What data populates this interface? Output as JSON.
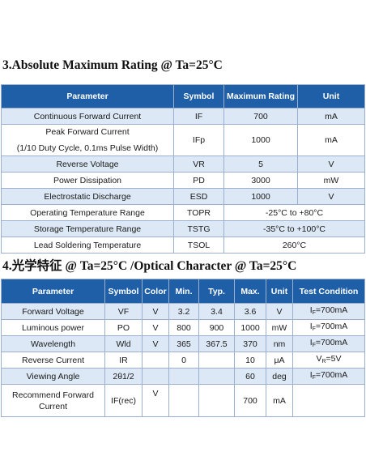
{
  "section1": {
    "title": "3.Absolute Maximum Rating @ Ta=25°C",
    "headers": [
      "Parameter",
      "Symbol",
      "Maximum Rating",
      "Unit"
    ],
    "rows": [
      {
        "param": "Continuous Forward Current",
        "symbol": "IF",
        "rating": "700",
        "unit": "mA"
      },
      {
        "param": "Peak Forward Current",
        "param2": "(1/10 Duty Cycle, 0.1ms Pulse Width)",
        "symbol": "IFp",
        "rating": "1000",
        "unit": "mA"
      },
      {
        "param": "Reverse Voltage",
        "symbol": "VR",
        "rating": "5",
        "unit": "V"
      },
      {
        "param": "Power Dissipation",
        "symbol": "PD",
        "rating": "3000",
        "unit": "mW"
      },
      {
        "param": "Electrostatic Discharge",
        "symbol": "ESD",
        "rating": "1000",
        "unit": "V"
      },
      {
        "param": "Operating Temperature Range",
        "symbol": "TOPR",
        "rating": "-25°C to +80°C"
      },
      {
        "param": "Storage Temperature Range",
        "symbol": "TSTG",
        "rating": "-35°C to +100°C"
      },
      {
        "param": "Lead Soldering Temperature",
        "symbol": "TSOL",
        "rating": "260°C"
      }
    ]
  },
  "section2": {
    "title": "4.光学特征 @ Ta=25°C /Optical Character @ Ta=25°C",
    "headers": [
      "Parameter",
      "Symbol",
      "Color",
      "Min.",
      "Typ.",
      "Max.",
      "Unit",
      "Test Condition"
    ],
    "rows": [
      {
        "param": "Forward Voltage",
        "symbol": "VF",
        "color": "V",
        "min": "3.2",
        "typ": "3.4",
        "max": "3.6",
        "unit": "V",
        "cond": "I",
        "cond_sub": "F",
        "cond_rest": "=700mA"
      },
      {
        "param": "Luminous power",
        "symbol": "PO",
        "color": "V",
        "min": "800",
        "typ": "900",
        "max": "1000",
        "unit": "mW",
        "cond": "I",
        "cond_sub": "F",
        "cond_rest": "=700mA"
      },
      {
        "param": "Wavelength",
        "symbol": "Wld",
        "color": "V",
        "min": "365",
        "typ": "367.5",
        "max": "370",
        "unit": "nm",
        "cond": "I",
        "cond_sub": "F",
        "cond_rest": "=700mA"
      },
      {
        "param": "Reverse Current",
        "symbol": "IR",
        "color": "",
        "min": "0",
        "typ": "",
        "max": "10",
        "unit": "μA",
        "cond": "V",
        "cond_sub": "R",
        "cond_rest": "=5V"
      },
      {
        "param": "Viewing Angle",
        "symbol": "2θ1/2",
        "color": "",
        "min": "",
        "typ": "",
        "max": "60",
        "unit": "deg",
        "cond": "I",
        "cond_sub": "F",
        "cond_rest": "=700mA"
      },
      {
        "param": "Recommend Forward Current",
        "symbol": "IF(rec)",
        "color": "V",
        "min": "",
        "typ": "",
        "max": "700",
        "unit": "mA",
        "cond": "",
        "cond_sub": "",
        "cond_rest": ""
      }
    ]
  }
}
